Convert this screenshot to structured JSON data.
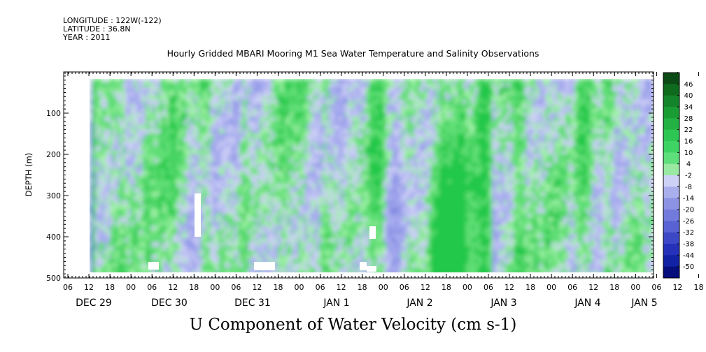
{
  "header": {
    "longitude": "LONGITUDE : 122W(-122)",
    "latitude": "LATITUDE : 36.8N",
    "year": "YEAR : 2011"
  },
  "chart_data": {
    "type": "heatmap",
    "title": "Hourly Gridded MBARI Mooring M1 Sea Water Temperature and Salinity Observations",
    "xlabel": "U Component of Water Velocity (cm s-1)",
    "ylabel": "DEPTH (m)",
    "ylim": [
      500,
      0
    ],
    "yticks": [
      100,
      200,
      300,
      400,
      500
    ],
    "xticks_hours": [
      "06",
      "12",
      "18",
      "00",
      "06",
      "12",
      "18",
      "00",
      "06",
      "12",
      "18",
      "00",
      "06",
      "12",
      "18",
      "00",
      "06",
      "12",
      "18",
      "00",
      "06",
      "12",
      "18",
      "00",
      "06",
      "12",
      "18",
      "00",
      "06",
      "12",
      "18",
      "00"
    ],
    "date_labels": [
      "DEC 29",
      "DEC 30",
      "DEC 31",
      "JAN  1",
      "JAN  2",
      "JAN  3",
      "JAN  4",
      "JAN  5"
    ],
    "colorbar_labels": [
      "46",
      "40",
      "34",
      "28",
      "22",
      "16",
      "10",
      "4",
      "-2",
      "-8",
      "-14",
      "-20",
      "-26",
      "-32",
      "-38",
      "-44",
      "-50"
    ],
    "colorbar_range": [
      -50,
      52
    ],
    "colors": {
      "strong_positive": "#0a5a14",
      "positive": "#22c84a",
      "weak_positive": "#9ef0a6",
      "near_zero": "#c9cdf5",
      "negative": "#8f95e6",
      "strong_negative": "#1f2bb5",
      "extreme_negative": "#05056a"
    },
    "depth_range_observed": [
      20,
      485
    ],
    "field_note_values": {
      "typical_range": [
        -26,
        22
      ]
    }
  }
}
